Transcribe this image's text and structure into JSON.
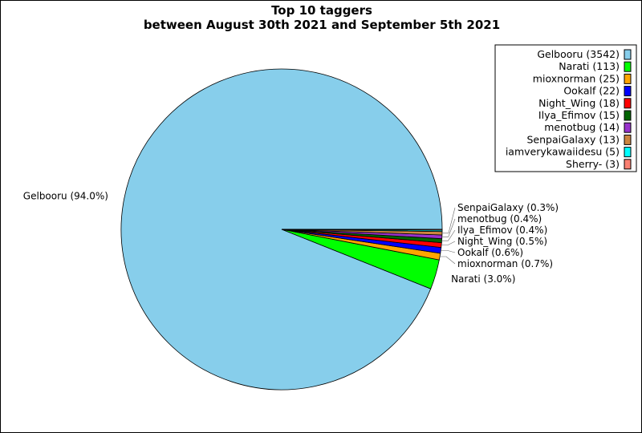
{
  "chart_data": {
    "type": "pie",
    "title": "Top 10 taggers",
    "subtitle": "between August 30th 2021 and September 5th 2021",
    "legend_position": "top-right",
    "slices": [
      {
        "label": "Gelbooru",
        "value": 3542,
        "legend": "Gelbooru (3542)",
        "pct_label": "Gelbooru (94.0%)",
        "color": "#87ceeb"
      },
      {
        "label": "Narati",
        "value": 113,
        "legend": "Narati (113)",
        "pct_label": "Narati (3.0%)",
        "color": "#00ff00"
      },
      {
        "label": "mioxnorman",
        "value": 25,
        "legend": "mioxnorman (25)",
        "pct_label": "mioxnorman (0.7%)",
        "color": "#ffa500"
      },
      {
        "label": "Ookalf",
        "value": 22,
        "legend": "Ookalf (22)",
        "pct_label": "Ookalf (0.6%)",
        "color": "#0000ff"
      },
      {
        "label": "Night_Wing",
        "value": 18,
        "legend": "Night_Wing (18)",
        "pct_label": "Night_Wing (0.5%)",
        "color": "#ff0000"
      },
      {
        "label": "Ilya_Efimov",
        "value": 15,
        "legend": "Ilya_Efimov (15)",
        "pct_label": "Ilya_Efimov (0.4%)",
        "color": "#006400"
      },
      {
        "label": "menotbug",
        "value": 14,
        "legend": "menotbug (14)",
        "pct_label": "menotbug (0.4%)",
        "color": "#9932cc"
      },
      {
        "label": "SenpaiGalaxy",
        "value": 13,
        "legend": "SenpaiGalaxy (13)",
        "pct_label": "SenpaiGalaxy (0.3%)",
        "color": "#cd853f"
      },
      {
        "label": "iamverykawaiidesu",
        "value": 5,
        "legend": "iamverykawaiidesu (5)",
        "pct_label": "",
        "color": "#00ffff"
      },
      {
        "label": "Sherry-",
        "value": 3,
        "legend": "Sherry- (3)",
        "pct_label": "",
        "color": "#fa8072"
      }
    ]
  }
}
